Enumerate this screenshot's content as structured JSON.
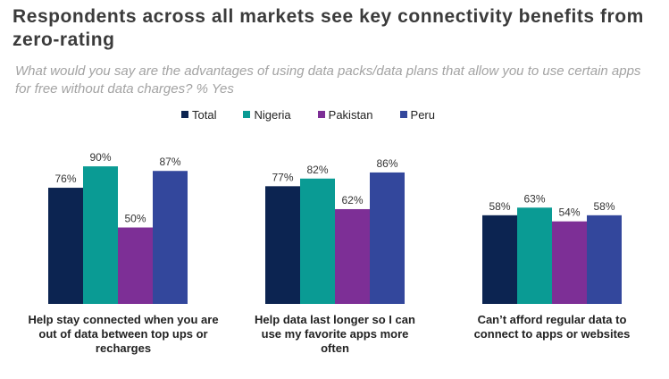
{
  "title": "Respondents across all markets see key connectivity benefits from zero-rating",
  "subtitle": "What would you say are the advantages of using data packs/data plans that allow you to use certain apps for free without data charges? % Yes",
  "chart_data": {
    "type": "bar",
    "categories": [
      "Help stay connected when you are out of data between top ups or recharges",
      "Help data last longer so I can use my favorite apps more often",
      "Can’t afford regular data to connect to apps or websites"
    ],
    "series": [
      {
        "name": "Total",
        "color": "#0c2451",
        "values": [
          76,
          77,
          58
        ]
      },
      {
        "name": "Nigeria",
        "color": "#0a9b94",
        "values": [
          90,
          82,
          63
        ]
      },
      {
        "name": "Pakistan",
        "color": "#7d2f96",
        "values": [
          50,
          62,
          54
        ]
      },
      {
        "name": "Peru",
        "color": "#33479c",
        "values": [
          87,
          86,
          58
        ]
      }
    ],
    "value_suffix": "%",
    "ylim": [
      0,
      100
    ],
    "legend_position": "top",
    "grid": false,
    "xlabel": "",
    "ylabel": ""
  }
}
